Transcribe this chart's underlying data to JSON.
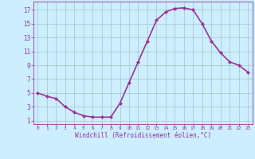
{
  "x": [
    0,
    1,
    2,
    3,
    4,
    5,
    6,
    7,
    8,
    9,
    10,
    11,
    12,
    13,
    14,
    15,
    16,
    17,
    18,
    19,
    20,
    21,
    22,
    23
  ],
  "y": [
    5.0,
    4.5,
    4.2,
    3.0,
    2.2,
    1.7,
    1.5,
    1.5,
    1.5,
    3.5,
    6.5,
    9.5,
    12.5,
    15.5,
    16.7,
    17.2,
    17.3,
    17.0,
    15.0,
    12.5,
    10.8,
    9.5,
    9.0,
    8.0
  ],
  "line_color": "#993399",
  "marker": "D",
  "marker_size": 2.0,
  "bg_color": "#cceeff",
  "grid_color": "#aacccc",
  "xlabel": "Windchill (Refroidissement éolien,°C)",
  "xlabel_color": "#993399",
  "tick_color": "#993399",
  "xlim": [
    -0.5,
    23.5
  ],
  "ylim": [
    0.5,
    18.2
  ],
  "yticks": [
    1,
    3,
    5,
    7,
    9,
    11,
    13,
    15,
    17
  ],
  "xticks": [
    0,
    1,
    2,
    3,
    4,
    5,
    6,
    7,
    8,
    9,
    10,
    11,
    12,
    13,
    14,
    15,
    16,
    17,
    18,
    19,
    20,
    21,
    22,
    23
  ],
  "linewidth": 1.2
}
